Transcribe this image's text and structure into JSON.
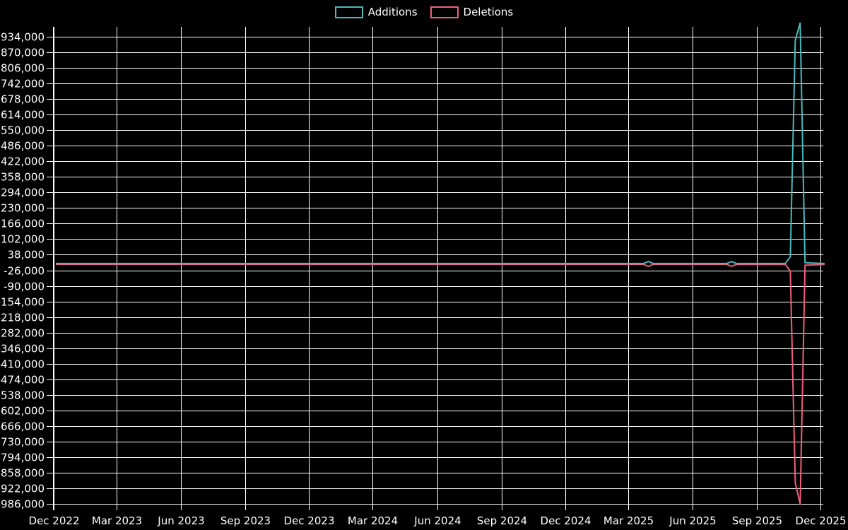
{
  "legend": {
    "items": [
      {
        "label": "Additions",
        "color": "#4ab9bd"
      },
      {
        "label": "Deletions",
        "color": "#ef607a"
      }
    ]
  },
  "chart_data": {
    "type": "line",
    "title": "",
    "xlabel": "",
    "ylabel": "",
    "background_color": "#000000",
    "grid": true,
    "grid_color": "#ffffff",
    "text_color": "#ffffff",
    "legend_position": "top-center",
    "x_axis": {
      "start_date": "2022-12-01",
      "end_date": "2025-12-01",
      "tick_labels": [
        "Dec 2022",
        "Mar 2023",
        "Jun 2023",
        "Sep 2023",
        "Dec 2023",
        "Mar 2024",
        "Jun 2024",
        "Sep 2024",
        "Dec 2024",
        "Mar 2025",
        "Jun 2025",
        "Sep 2025",
        "Dec 2025"
      ],
      "tick_dates": [
        "2022-12-01",
        "2023-03-01",
        "2023-06-01",
        "2023-09-01",
        "2023-12-01",
        "2024-03-01",
        "2024-06-01",
        "2024-09-01",
        "2024-12-01",
        "2025-03-01",
        "2025-06-01",
        "2025-09-01",
        "2025-12-01"
      ]
    },
    "y_axis": {
      "tick_step": 64000,
      "ylim": [
        -986000,
        975000
      ],
      "tick_values": [
        934000,
        870000,
        806000,
        742000,
        678000,
        614000,
        550000,
        486000,
        422000,
        358000,
        294000,
        230000,
        166000,
        102000,
        38000,
        -26000,
        -90000,
        -154000,
        -218000,
        -282000,
        -346000,
        -410000,
        -474000,
        -538000,
        -602000,
        -666000,
        -730000,
        -794000,
        -858000,
        -922000,
        -986000
      ],
      "tick_labels": [
        "934,000",
        "870,000",
        "806,000",
        "742,000",
        "678,000",
        "614,000",
        "550,000",
        "486,000",
        "422,000",
        "358,000",
        "294,000",
        "230,000",
        "166,000",
        "102,000",
        "38,000",
        "-26,000",
        "-90,000",
        "-154,000",
        "-218,000",
        "-282,000",
        "-346,000",
        "-410,000",
        "-474,000",
        "-538,000",
        "-602,000",
        "-666,000",
        "-730,000",
        "-794,000",
        "-858,000",
        "-922,000",
        "-986,000"
      ]
    },
    "series": [
      {
        "name": "Additions",
        "color": "#4ab9bd",
        "points": [
          {
            "date": "2022-12-04",
            "value": 2000
          },
          {
            "date": "2025-03-23",
            "value": 2000
          },
          {
            "date": "2025-03-30",
            "value": 10000
          },
          {
            "date": "2025-04-06",
            "value": 2000
          },
          {
            "date": "2025-07-20",
            "value": 2000
          },
          {
            "date": "2025-07-27",
            "value": 10000
          },
          {
            "date": "2025-08-03",
            "value": 2000
          },
          {
            "date": "2025-10-12",
            "value": 2500
          },
          {
            "date": "2025-10-19",
            "value": 30000
          },
          {
            "date": "2025-10-26",
            "value": 920000
          },
          {
            "date": "2025-11-02",
            "value": 990000
          },
          {
            "date": "2025-11-09",
            "value": 5000
          },
          {
            "date": "2025-12-07",
            "value": 2000
          }
        ]
      },
      {
        "name": "Deletions",
        "color": "#ef607a",
        "points": [
          {
            "date": "2022-12-04",
            "value": -1500
          },
          {
            "date": "2025-03-23",
            "value": -1500
          },
          {
            "date": "2025-03-30",
            "value": -10000
          },
          {
            "date": "2025-04-06",
            "value": -1500
          },
          {
            "date": "2025-07-20",
            "value": -1500
          },
          {
            "date": "2025-07-27",
            "value": -10000
          },
          {
            "date": "2025-08-03",
            "value": -1500
          },
          {
            "date": "2025-10-12",
            "value": -2000
          },
          {
            "date": "2025-10-19",
            "value": -30000
          },
          {
            "date": "2025-10-26",
            "value": -900000
          },
          {
            "date": "2025-11-02",
            "value": -986000
          },
          {
            "date": "2025-11-09",
            "value": -5000
          },
          {
            "date": "2025-12-07",
            "value": -1500
          }
        ]
      }
    ]
  }
}
